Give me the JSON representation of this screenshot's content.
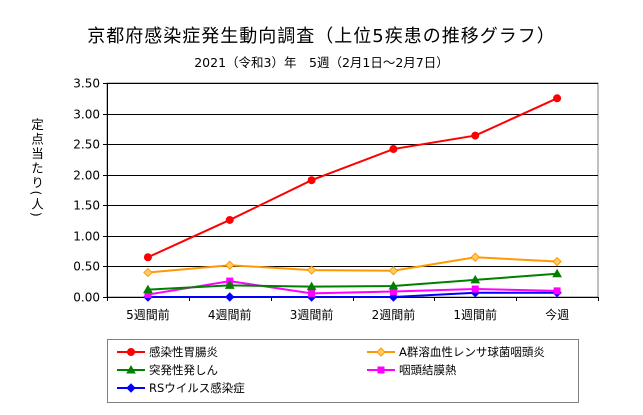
{
  "chart_data": {
    "type": "line",
    "title": "京都府感染症発生動向調査（上位5疾患の推移グラフ）",
    "subtitle": "2021（令和3）年　5週（2月1日～2月7日）",
    "ylabel": "定点当たり(人)",
    "categories": [
      "5週間前",
      "4週間前",
      "3週間前",
      "2週間前",
      "1週間前",
      "今週"
    ],
    "ylim": [
      0,
      3.5
    ],
    "yticks": [
      "0.00",
      "0.50",
      "1.00",
      "1.50",
      "2.00",
      "2.50",
      "3.00",
      "3.50"
    ],
    "grid": true,
    "legend_position": "bottom",
    "series": [
      {
        "name": "感染性胃腸炎",
        "color": "#ff0000",
        "marker": "circle",
        "values": [
          0.65,
          1.26,
          1.91,
          2.42,
          2.64,
          3.25
        ]
      },
      {
        "name": "A群溶血性レンサ球菌咽頭炎",
        "color": "#ff9900",
        "marker": "diamond",
        "values": [
          0.4,
          0.52,
          0.44,
          0.43,
          0.65,
          0.58
        ]
      },
      {
        "name": "突発性発しん",
        "color": "#008000",
        "marker": "triangle",
        "values": [
          0.12,
          0.19,
          0.17,
          0.18,
          0.28,
          0.38
        ]
      },
      {
        "name": "咽頭結膜熱",
        "color": "#ff00ff",
        "marker": "square",
        "values": [
          0.04,
          0.26,
          0.06,
          0.09,
          0.13,
          0.1
        ]
      },
      {
        "name": "RSウイルス感染症",
        "color": "#0000ff",
        "marker": "diamond",
        "values": [
          0.0,
          0.0,
          0.0,
          0.0,
          0.07,
          0.07
        ]
      }
    ]
  }
}
